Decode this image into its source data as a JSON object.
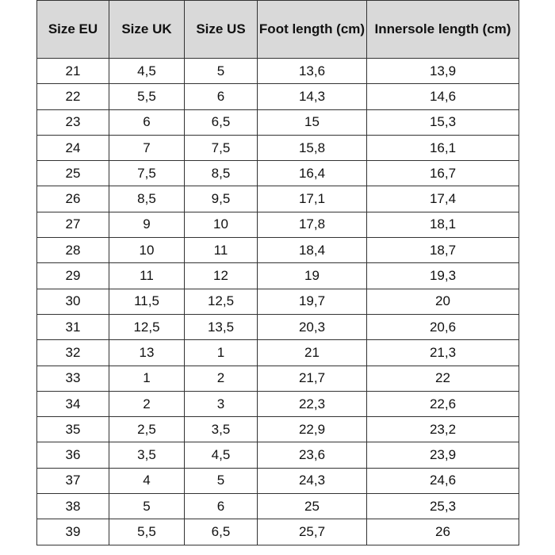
{
  "headers": [
    "Size EU",
    "Size UK",
    "Size US",
    "Foot length (cm)",
    "Innersole length (cm)"
  ],
  "rows": [
    [
      "21",
      "4,5",
      "5",
      "13,6",
      "13,9"
    ],
    [
      "22",
      "5,5",
      "6",
      "14,3",
      "14,6"
    ],
    [
      "23",
      "6",
      "6,5",
      "15",
      "15,3"
    ],
    [
      "24",
      "7",
      "7,5",
      "15,8",
      "16,1"
    ],
    [
      "25",
      "7,5",
      "8,5",
      "16,4",
      "16,7"
    ],
    [
      "26",
      "8,5",
      "9,5",
      "17,1",
      "17,4"
    ],
    [
      "27",
      "9",
      "10",
      "17,8",
      "18,1"
    ],
    [
      "28",
      "10",
      "11",
      "18,4",
      "18,7"
    ],
    [
      "29",
      "11",
      "12",
      "19",
      "19,3"
    ],
    [
      "30",
      "11,5",
      "12,5",
      "19,7",
      "20"
    ],
    [
      "31",
      "12,5",
      "13,5",
      "20,3",
      "20,6"
    ],
    [
      "32",
      "13",
      "1",
      "21",
      "21,3"
    ],
    [
      "33",
      "1",
      "2",
      "21,7",
      "22"
    ],
    [
      "34",
      "2",
      "3",
      "22,3",
      "22,6"
    ],
    [
      "35",
      "2,5",
      "3,5",
      "22,9",
      "23,2"
    ],
    [
      "36",
      "3,5",
      "4,5",
      "23,6",
      "23,9"
    ],
    [
      "37",
      "4",
      "5",
      "24,3",
      "24,6"
    ],
    [
      "38",
      "5",
      "6",
      "25",
      "25,3"
    ],
    [
      "39",
      "5,5",
      "6,5",
      "25,7",
      "26"
    ]
  ],
  "colors": {
    "header_bg": "#d9d9d9",
    "border": "#333333"
  }
}
